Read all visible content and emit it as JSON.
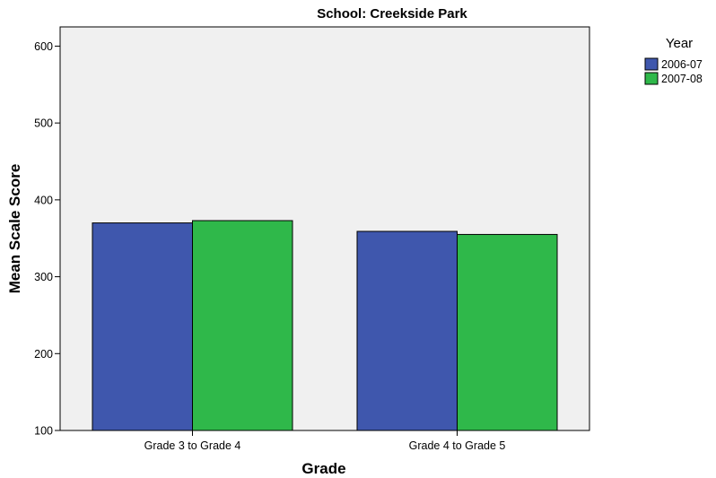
{
  "chart_data": {
    "type": "bar",
    "title": "School: Creekside Park",
    "xlabel": "Grade",
    "ylabel": "Mean Scale Score",
    "categories": [
      "Grade 3 to Grade 4",
      "Grade 4 to Grade 5"
    ],
    "series": [
      {
        "name": "2006-07",
        "values": [
          370,
          359
        ],
        "color": "#3f57ad"
      },
      {
        "name": "2007-08",
        "values": [
          373,
          355
        ],
        "color": "#2fb84a"
      }
    ],
    "ylim": [
      100,
      625
    ],
    "yticks": [
      100,
      200,
      300,
      400,
      500,
      600
    ],
    "grid": false,
    "legend": {
      "title": "Year",
      "position": "top-right"
    },
    "plot_background": "#f0f0f0"
  }
}
